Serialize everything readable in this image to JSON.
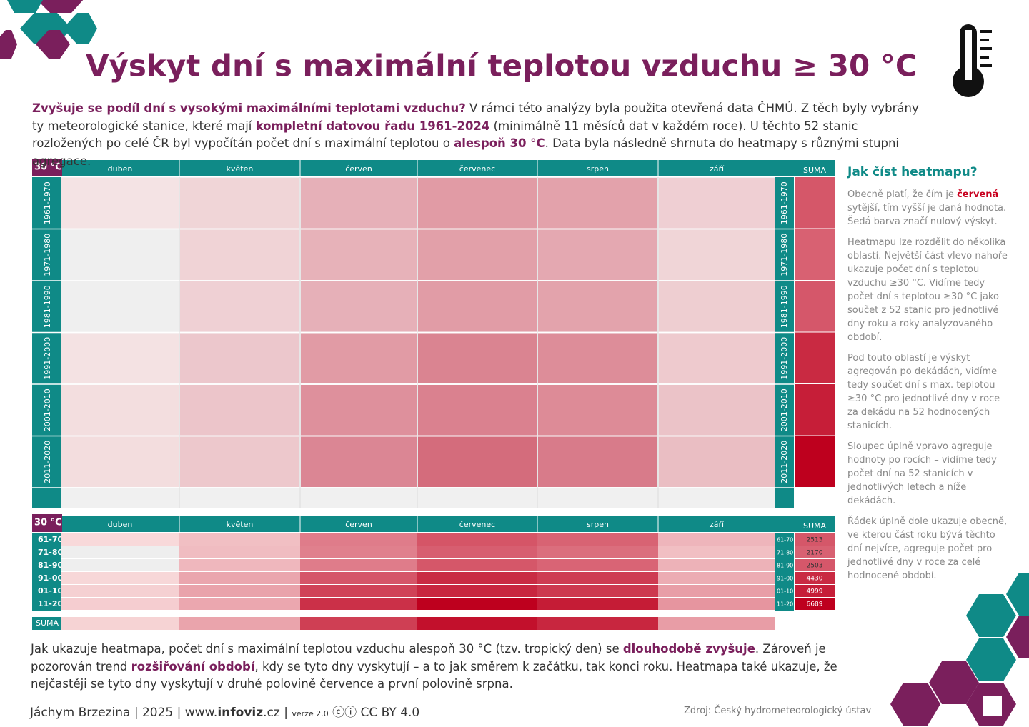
{
  "header": {
    "title": "Výskyt dní s maximální teplotou vzduchu ≥ 30 °C"
  },
  "intro": [
    {
      "text": "Zvyšuje se podíl dní s vysokými maximálními teplotami vzduchu?",
      "strong": true
    },
    {
      "text": " V rámci této analýzy byla použita otevřená data ČHMÚ. Z těch byly vybrány ty meteorologické stanice, které mají ",
      "strong": false
    },
    {
      "text": "kompletní datovou řadu 1961-2024",
      "strong": true
    },
    {
      "text": " (minimálně 11 měsíců dat v každém roce). U těchto 52 stanic rozložených po celé ČR byl vypočítán počet dní s maximální teplotou o ",
      "strong": false
    },
    {
      "text": "alespoň 30 °C",
      "strong": true
    },
    {
      "text": ". Data byla následně shrnuta do heatmapy s různými stupni agregace.",
      "strong": false
    }
  ],
  "chart_data": {
    "type": "heatmap",
    "corner_label": "30 °C",
    "months": [
      "duben",
      "květen",
      "červen",
      "červenec",
      "srpen",
      "září"
    ],
    "decades": [
      "1961-1970",
      "1971-1980",
      "1981-1990",
      "1991-2000",
      "2001-2010",
      "2011-2020"
    ],
    "sum_label": "SUMA",
    "aggregate": {
      "corner_label": "30 °C",
      "rows": [
        "61-70",
        "71-80",
        "81-90",
        "91-00",
        "01-10",
        "11-20"
      ],
      "values": [
        [
          3,
          60,
          520,
          1010,
          820,
          100
        ],
        [
          0,
          70,
          480,
          880,
          680,
          60
        ],
        [
          0,
          90,
          520,
          980,
          800,
          113
        ],
        [
          5,
          180,
          1000,
          1700,
          1400,
          145
        ],
        [
          15,
          200,
          1300,
          1800,
          1450,
          234
        ],
        [
          20,
          170,
          1600,
          2600,
          2000,
          299
        ]
      ],
      "totals": [
        2513,
        2170,
        2503,
        4430,
        4999,
        6689
      ],
      "sum_label": "SUMA",
      "sum_row_label": "SUMA"
    }
  },
  "sidebar": {
    "heading": "Jak číst heatmapu?",
    "paragraphs": [
      [
        {
          "text": "Obecně platí, že čím je ",
          "strong": false
        },
        {
          "text": "červená",
          "strong": true
        },
        {
          "text": " sytější, tím vyšší je daná hodnota. Šedá barva značí nulový výskyt.",
          "strong": false
        }
      ],
      [
        {
          "text": "Heatmapu lze rozdělit do několika oblastí. Největší část vlevo nahoře ukazuje počet dní s teplotou vzduchu ≥30 °C. Vidíme tedy počet dní s teplotou ≥30 °C jako součet z 52 stanic pro jednotlivé dny roku a roky analyzovaného období.",
          "strong": false
        }
      ],
      [
        {
          "text": "Pod touto oblastí je výskyt agregován po dekádách, vidíme tedy součet dní s max. teplotou ≥30 °C pro jednotlivé dny v roce za dekádu na 52 hodnocených stanicích.",
          "strong": false
        }
      ],
      [
        {
          "text": "Sloupec úplně vpravo agreguje hodnoty po rocích – vidíme tedy počet dní na 52 stanicích v jednotlivých letech a níže dekádách.",
          "strong": false
        }
      ],
      [
        {
          "text": "Řádek úplně dole ukazuje obecně, ve kterou část roku bývá těchto dní nejvíce, agreguje počet pro jednotlivé dny v roce za celé hodnocené období.",
          "strong": false
        }
      ]
    ]
  },
  "conclusion": [
    {
      "text": "Jak ukazuje heatmapa, počet dní s maximální teplotou vzduchu alespoň 30 °C (tzv. tropický den) se ",
      "strong": false
    },
    {
      "text": "dlouhodobě zvyšuje",
      "strong": true
    },
    {
      "text": ". Zároveň je pozorován trend ",
      "strong": false
    },
    {
      "text": "rozšiřování období",
      "strong": true
    },
    {
      "text": ", kdy se tyto dny vyskytují – a to jak směrem k začátku, tak konci roku. Heatmapa také ukazuje, že nejčastěji se tyto dny vyskytují v druhé polovině července a první polovině srpna.",
      "strong": false
    }
  ],
  "footer": {
    "author": "Jáchym Brzezina | 2025 | www.",
    "site": "infoviz",
    "domain": ".cz |",
    "version": "verze 2.0",
    "license": "CC BY 4.0",
    "source": "Zdroj: Český hydrometeorologický ústav"
  }
}
